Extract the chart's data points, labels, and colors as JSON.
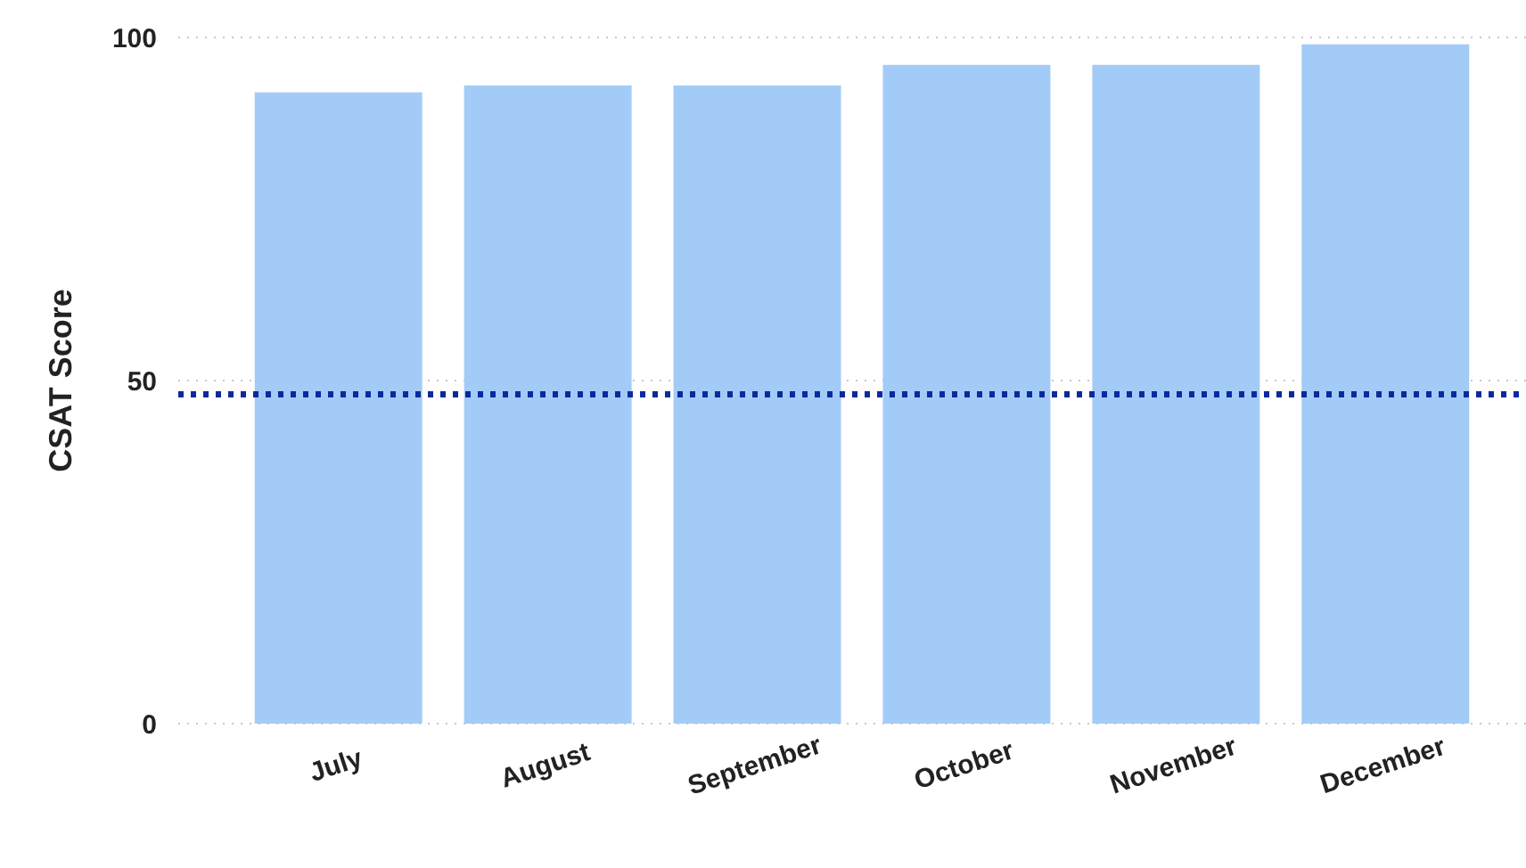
{
  "chart_data": {
    "type": "bar",
    "ylabel": "CSAT Score",
    "categories": [
      "July",
      "August",
      "September",
      "October",
      "November",
      "December"
    ],
    "series": [
      {
        "color": "#a3cbf7",
        "values": [
          92,
          93,
          93,
          96,
          96,
          99
        ]
      }
    ],
    "ylim": [
      0,
      100
    ],
    "yticks": [
      0,
      50,
      100
    ],
    "grid": "y",
    "ref_lines": [
      {
        "axis": "y",
        "value": 48,
        "color": "#0a2a9e",
        "line_style": "dotted"
      }
    ]
  }
}
